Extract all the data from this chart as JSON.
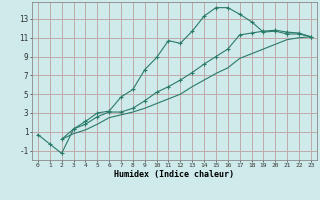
{
  "xlabel": "Humidex (Indice chaleur)",
  "bg_color": "#ceeaea",
  "grid_color": "#c0aaaa",
  "line_color": "#2a7a6a",
  "xlim": [
    -0.5,
    23.5
  ],
  "ylim": [
    -2.0,
    14.8
  ],
  "xticks": [
    0,
    1,
    2,
    3,
    4,
    5,
    6,
    7,
    8,
    9,
    10,
    11,
    12,
    13,
    14,
    15,
    16,
    17,
    18,
    19,
    20,
    21,
    22,
    23
  ],
  "yticks": [
    -1,
    1,
    3,
    5,
    7,
    9,
    11,
    13
  ],
  "line1_x": [
    0,
    1,
    2,
    3,
    4,
    5,
    6,
    7,
    8,
    9,
    10,
    11,
    12,
    13,
    14,
    15,
    16,
    17,
    18,
    19,
    20,
    21,
    22,
    23
  ],
  "line1_y": [
    0.7,
    -0.3,
    -1.3,
    1.3,
    2.1,
    3.0,
    3.2,
    4.7,
    5.5,
    7.6,
    8.9,
    10.7,
    10.4,
    11.7,
    13.3,
    14.2,
    14.2,
    13.5,
    12.7,
    11.6,
    11.7,
    11.4,
    11.4,
    11.1
  ],
  "line2_x": [
    2,
    3,
    4,
    5,
    6,
    7,
    8,
    9,
    10,
    11,
    12,
    13,
    14,
    15,
    16,
    17,
    18,
    19,
    20,
    21,
    22,
    23
  ],
  "line2_y": [
    0.2,
    1.3,
    1.8,
    2.6,
    3.1,
    3.1,
    3.5,
    4.3,
    5.2,
    5.8,
    6.5,
    7.3,
    8.2,
    9.0,
    9.8,
    11.3,
    11.5,
    11.7,
    11.8,
    11.6,
    11.5,
    11.1
  ],
  "line3_x": [
    2,
    3,
    4,
    5,
    6,
    7,
    8,
    9,
    10,
    11,
    12,
    13,
    14,
    15,
    16,
    17,
    18,
    19,
    20,
    21,
    22,
    23
  ],
  "line3_y": [
    0.2,
    0.8,
    1.2,
    1.8,
    2.5,
    2.8,
    3.1,
    3.5,
    4.0,
    4.5,
    5.0,
    5.8,
    6.5,
    7.2,
    7.8,
    8.8,
    9.3,
    9.8,
    10.3,
    10.8,
    11.0,
    11.1
  ]
}
